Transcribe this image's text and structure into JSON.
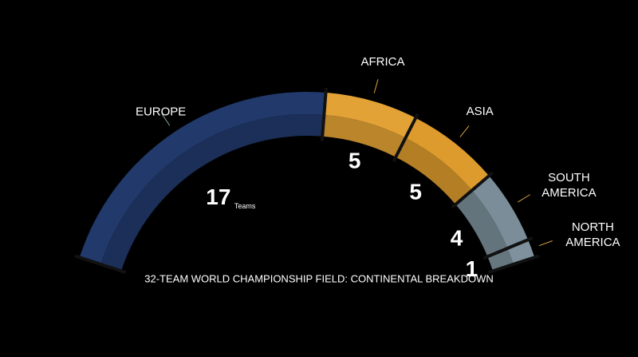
{
  "chart_data": {
    "type": "arc",
    "title": "32-TEAM WORLD CHAMPIONSHIP FIELD: CONTINENTAL BREAKDOWN",
    "unit_label": "Teams",
    "categories": [
      "EUROPE",
      "AFRICA",
      "ASIA",
      "SOUTH AMERICA",
      "NORTH AMERICA"
    ],
    "values": [
      17,
      5,
      5,
      4,
      1
    ],
    "colors": [
      "#21396b",
      "#e3a235",
      "#dc9b2c",
      "#7a8d98",
      "#7e919c"
    ]
  }
}
